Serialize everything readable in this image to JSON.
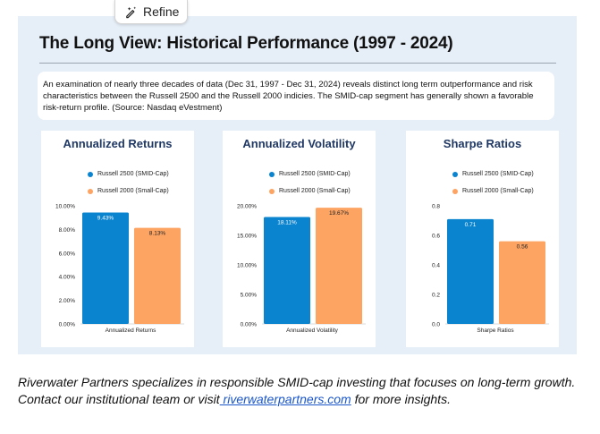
{
  "refine_button": {
    "label": "Refine",
    "icon": "sparkle-pen-icon"
  },
  "title": "The Long View: Historical Performance (1997 - 2024)",
  "description": "An examination of nearly three decades of data (Dec 31, 1997 - Dec 31, 2024) reveals distinct long term outperformance and risk characteristics between the Russell 2500 and the Russell 2000 indicies. The SMID-cap segment has generally shown a favorable risk-return profile. (Source: Nasdaq eVestment)",
  "colors": {
    "russell2500": "#0b84d0",
    "russell2000": "#fda463",
    "title": "#1f3864",
    "panel": "#e6eef7"
  },
  "chart_data": [
    {
      "type": "bar",
      "title": "Annualized Returns",
      "categories": [
        "Annualized Returns"
      ],
      "series": [
        {
          "name": "Russell 2500 (SMID-Cap)",
          "values": [
            9.43
          ],
          "labels": [
            "9.43%"
          ]
        },
        {
          "name": "Russell 2000 (Small-Cap)",
          "values": [
            8.13
          ],
          "labels": [
            "8.13%"
          ]
        }
      ],
      "yticks": [
        "0.00%",
        "2.00%",
        "4.00%",
        "6.00%",
        "8.00%",
        "10.00%"
      ],
      "ylim": [
        0,
        10
      ],
      "legend": "top-center",
      "grid": false
    },
    {
      "type": "bar",
      "title": "Annualized Volatility",
      "categories": [
        "Annualized Volatility"
      ],
      "series": [
        {
          "name": "Russell 2500 (SMID-Cap)",
          "values": [
            18.11
          ],
          "labels": [
            "18.11%"
          ]
        },
        {
          "name": "Russell 2000 (Small-Cap)",
          "values": [
            19.67
          ],
          "labels": [
            "19.67%"
          ]
        }
      ],
      "yticks": [
        "0.00%",
        "5.00%",
        "10.00%",
        "15.00%",
        "20.00%"
      ],
      "ylim": [
        0,
        20
      ],
      "legend": "top-center",
      "grid": false
    },
    {
      "type": "bar",
      "title": "Sharpe Ratios",
      "categories": [
        "Sharpe Ratios"
      ],
      "series": [
        {
          "name": "Russell 2500 (SMID-Cap)",
          "values": [
            0.71
          ],
          "labels": [
            "0.71"
          ]
        },
        {
          "name": "Russell 2000 (Small-Cap)",
          "values": [
            0.56
          ],
          "labels": [
            "0.56"
          ]
        }
      ],
      "yticks": [
        "0.0",
        "0.2",
        "0.4",
        "0.6",
        "0.8"
      ],
      "ylim": [
        0,
        0.8
      ],
      "legend": "top-center",
      "grid": false
    }
  ],
  "footer": {
    "text_before": "Riverwater Partners specializes in responsible SMID-cap investing that focuses on long-term growth. Contact our institutional team or visit",
    "link_text": " riverwaterpartners.com",
    "text_after": " for more insights."
  }
}
